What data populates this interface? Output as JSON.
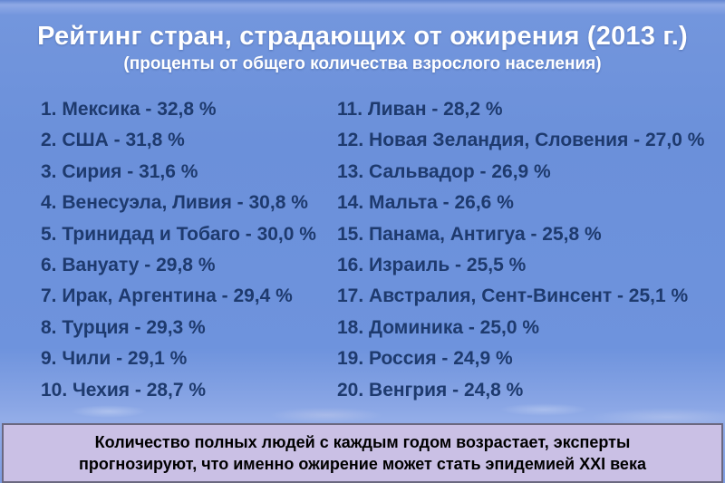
{
  "slide": {
    "title": "Рейтинг стран, страдающих от ожирения (2013 г.)",
    "subtitle": "(проценты от общего количества взрослого населения)",
    "footer_note": "Количество полных людей с каждым годом возрастает, эксперты прогнозируют, что именно ожирение может стать эпидемией XXI века"
  },
  "ranking": {
    "columns": [
      {
        "items": [
          {
            "rank": "1",
            "countries": "Мексика",
            "percent": "32,8 %"
          },
          {
            "rank": "2",
            "countries": "США",
            "percent": "31,8 %"
          },
          {
            "rank": "3",
            "countries": "Сирия",
            "percent": "31,6 %"
          },
          {
            "rank": "4",
            "countries": "Венесуэла, Ливия",
            "percent": "30,8 %"
          },
          {
            "rank": "5",
            "countries": "Тринидад и Тобаго",
            "percent": "30,0 %"
          },
          {
            "rank": "6",
            "countries": "Вануату",
            "percent": "29,8 %"
          },
          {
            "rank": "7",
            "countries": "Ирак, Аргентина",
            "percent": "29,4 %"
          },
          {
            "rank": "8",
            "countries": "Турция",
            "percent": "29,3 %"
          },
          {
            "rank": "9",
            "countries": "Чили",
            "percent": "29,1 %"
          },
          {
            "rank": "10",
            "countries": "Чехия",
            "percent": "28,7 %"
          }
        ]
      },
      {
        "items": [
          {
            "rank": "11",
            "countries": "Ливан",
            "percent": "28,2 %"
          },
          {
            "rank": "12",
            "countries": "Новая Зеландия, Словения",
            "percent": "27,0 %"
          },
          {
            "rank": "13",
            "countries": "Сальвадор",
            "percent": "26,9 %"
          },
          {
            "rank": "14",
            "countries": "Мальта",
            "percent": "26,6 %"
          },
          {
            "rank": "15",
            "countries": "Панама, Антигуа",
            "percent": "25,8 %"
          },
          {
            "rank": "16",
            "countries": "Израиль",
            "percent": "25,5 %"
          },
          {
            "rank": "17",
            "countries": "Австралия, Сент-Винсент",
            "percent": "25,1 %"
          },
          {
            "rank": "18",
            "countries": "Доминика",
            "percent": "25,0 %"
          },
          {
            "rank": "19",
            "countries": "Россия",
            "percent": "24,9 %"
          },
          {
            "rank": "20",
            "countries": "Венгрия",
            "percent": "24,8 %"
          }
        ]
      }
    ]
  },
  "colors": {
    "background": "#6b90da",
    "title_text": "#ffffff",
    "list_text": "#1e3a6e",
    "footer_bg": "#cac0e5",
    "footer_border": "#6b6880",
    "footer_text": "#000000"
  }
}
